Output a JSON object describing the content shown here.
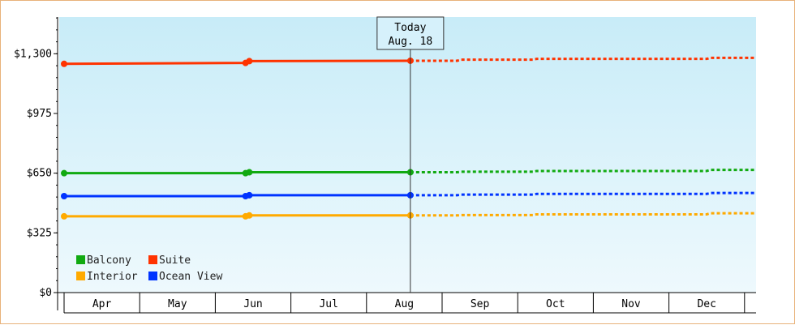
{
  "chart_data": {
    "type": "line",
    "today": {
      "label": "Today",
      "date": "Aug. 18",
      "x": 4.58
    },
    "ylim": [
      0,
      1500
    ],
    "y_ticks": [
      {
        "value": 0,
        "label": "$0"
      },
      {
        "value": 325,
        "label": "$325"
      },
      {
        "value": 650,
        "label": "$650"
      },
      {
        "value": 975,
        "label": "$975"
      },
      {
        "value": 1300,
        "label": "$1,300"
      }
    ],
    "months": [
      "Apr",
      "May",
      "Jun",
      "Jul",
      "Aug",
      "Sep",
      "Oct",
      "Nov",
      "Dec"
    ],
    "series": [
      {
        "name": "Suite",
        "color": "#ff3300",
        "actual": [
          [
            0,
            1245
          ],
          [
            2.4,
            1250
          ],
          [
            2.45,
            1260
          ],
          [
            4.58,
            1262
          ]
        ],
        "forecast": [
          [
            4.58,
            1262
          ],
          [
            5.2,
            1262
          ],
          [
            5.25,
            1268
          ],
          [
            6.2,
            1268
          ],
          [
            6.25,
            1272
          ],
          [
            8.5,
            1272
          ],
          [
            8.55,
            1278
          ],
          [
            9.2,
            1278
          ]
        ]
      },
      {
        "name": "Balcony",
        "color": "#11aa11",
        "actual": [
          [
            0,
            650
          ],
          [
            2.4,
            650
          ],
          [
            2.45,
            655
          ],
          [
            4.58,
            655
          ]
        ],
        "forecast": [
          [
            4.58,
            655
          ],
          [
            5.2,
            655
          ],
          [
            5.25,
            658
          ],
          [
            6.2,
            658
          ],
          [
            6.25,
            662
          ],
          [
            8.5,
            662
          ],
          [
            8.55,
            668
          ],
          [
            9.2,
            668
          ]
        ]
      },
      {
        "name": "Ocean View",
        "color": "#0033ff",
        "actual": [
          [
            0,
            525
          ],
          [
            2.4,
            525
          ],
          [
            2.45,
            530
          ],
          [
            4.58,
            530
          ]
        ],
        "forecast": [
          [
            4.58,
            530
          ],
          [
            5.2,
            530
          ],
          [
            5.25,
            533
          ],
          [
            6.2,
            533
          ],
          [
            6.25,
            537
          ],
          [
            8.5,
            537
          ],
          [
            8.55,
            542
          ],
          [
            9.2,
            542
          ]
        ]
      },
      {
        "name": "Interior",
        "color": "#ffaa00",
        "actual": [
          [
            0,
            415
          ],
          [
            2.4,
            415
          ],
          [
            2.45,
            420
          ],
          [
            4.58,
            420
          ]
        ],
        "forecast": [
          [
            4.58,
            420
          ],
          [
            5.2,
            420
          ],
          [
            5.25,
            422
          ],
          [
            6.2,
            422
          ],
          [
            6.25,
            426
          ],
          [
            8.5,
            426
          ],
          [
            8.55,
            432
          ],
          [
            9.2,
            432
          ]
        ]
      }
    ],
    "markers": {
      "Suite": [
        [
          0,
          1245
        ],
        [
          2.4,
          1250
        ],
        [
          2.45,
          1260
        ],
        [
          4.58,
          1262
        ]
      ],
      "Balcony": [
        [
          0,
          650
        ],
        [
          2.4,
          650
        ],
        [
          2.45,
          655
        ],
        [
          4.58,
          655
        ]
      ],
      "Ocean View": [
        [
          0,
          525
        ],
        [
          2.4,
          525
        ],
        [
          2.45,
          530
        ],
        [
          4.58,
          530
        ]
      ],
      "Interior": [
        [
          0,
          415
        ],
        [
          2.4,
          415
        ],
        [
          2.45,
          420
        ],
        [
          4.58,
          420
        ]
      ]
    },
    "legend": {
      "placement": "bottom-left",
      "rows": [
        [
          {
            "label": "Balcony",
            "color": "#11aa11"
          },
          {
            "label": "Suite",
            "color": "#ff3300"
          }
        ],
        [
          {
            "label": "Interior",
            "color": "#ffaa00"
          },
          {
            "label": "Ocean View",
            "color": "#0033ff"
          }
        ]
      ]
    },
    "grid": false
  }
}
